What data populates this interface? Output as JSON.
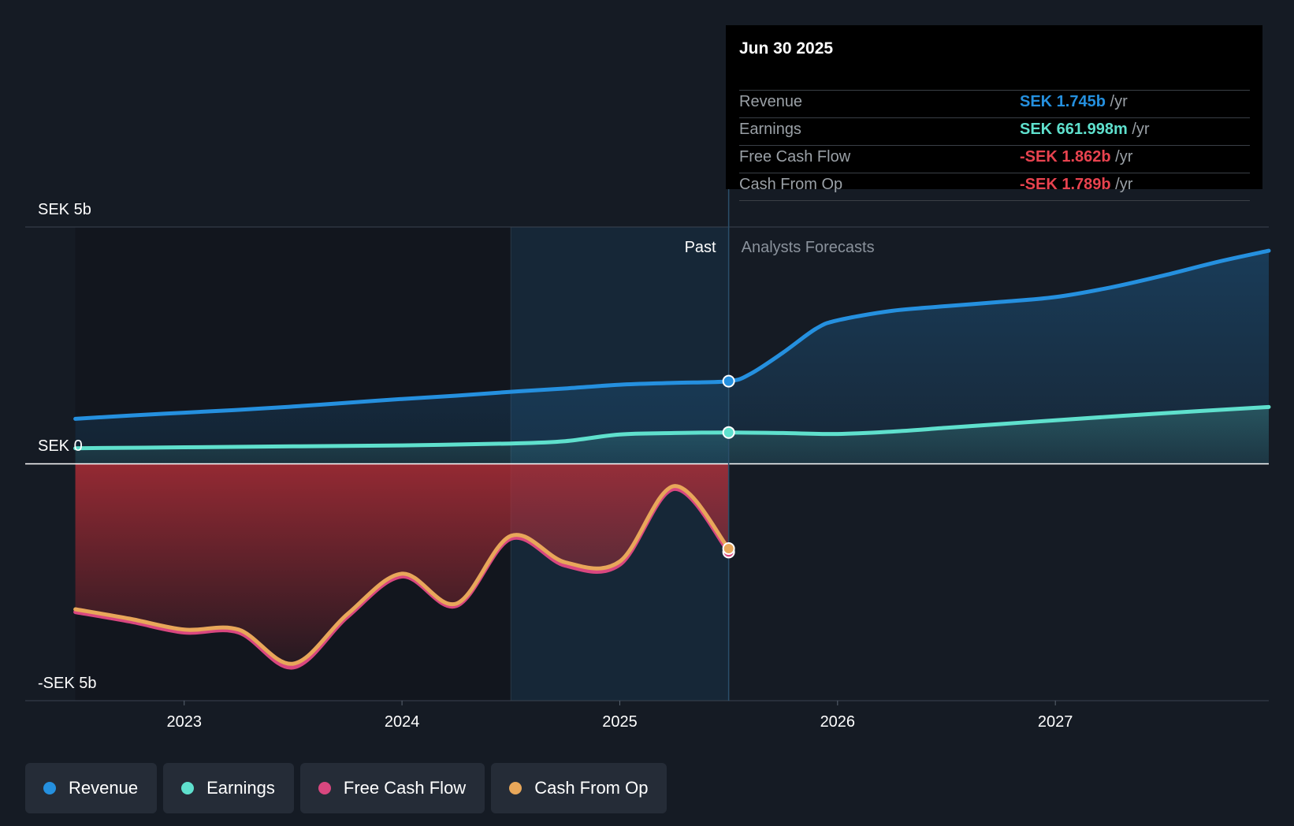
{
  "colors": {
    "revenue": "#2590df",
    "earnings": "#5fe0cd",
    "free_cash_flow": "#d9477f",
    "cash_from_op": "#e8a75a",
    "negative": "#e8434f",
    "background": "#151b24"
  },
  "chart_data": {
    "type": "line",
    "xlabel": "",
    "ylabel": "",
    "ylim": [
      -5,
      5
    ],
    "xlim": [
      2022.27,
      2027.98
    ],
    "x_ticks": [
      "2023",
      "2024",
      "2025",
      "2026",
      "2027"
    ],
    "y_ticks": [
      {
        "value": 5,
        "label": "SEK 5b"
      },
      {
        "value": 0,
        "label": "SEK 0"
      },
      {
        "value": -5,
        "label": "-SEK 5b"
      }
    ],
    "past_label": "Past",
    "forecast_label": "Analysts Forecasts",
    "divider_date": 2025.5,
    "highlight_start": 2024.5,
    "series": [
      {
        "name": "Revenue",
        "key": "revenue",
        "x": [
          2022.5,
          2022.75,
          2023.0,
          2023.25,
          2023.5,
          2023.75,
          2024.0,
          2024.25,
          2024.5,
          2024.75,
          2025.0,
          2025.25,
          2025.5,
          2025.6,
          2025.75,
          2025.9,
          2026.0,
          2026.25,
          2026.5,
          2026.75,
          2027.0,
          2027.25,
          2027.5,
          2027.75,
          2027.98
        ],
        "y": [
          0.95,
          1.02,
          1.08,
          1.14,
          1.21,
          1.29,
          1.37,
          1.44,
          1.52,
          1.59,
          1.67,
          1.71,
          1.745,
          1.9,
          2.35,
          2.85,
          3.03,
          3.23,
          3.33,
          3.42,
          3.52,
          3.72,
          3.98,
          4.27,
          4.5
        ]
      },
      {
        "name": "Earnings",
        "key": "earnings",
        "x": [
          2022.5,
          2023.0,
          2023.5,
          2024.0,
          2024.5,
          2024.75,
          2025.0,
          2025.25,
          2025.5,
          2025.75,
          2026.0,
          2026.25,
          2026.5,
          2026.75,
          2027.0,
          2027.5,
          2027.98
        ],
        "y": [
          0.33,
          0.35,
          0.37,
          0.39,
          0.43,
          0.48,
          0.62,
          0.65,
          0.662,
          0.65,
          0.63,
          0.68,
          0.76,
          0.84,
          0.92,
          1.07,
          1.2
        ]
      },
      {
        "name": "Free Cash Flow",
        "key": "free_cash_flow",
        "x": [
          2022.5,
          2022.75,
          2023.0,
          2023.25,
          2023.5,
          2023.75,
          2024.0,
          2024.25,
          2024.5,
          2024.75,
          2025.0,
          2025.25,
          2025.5
        ],
        "y": [
          -3.13,
          -3.33,
          -3.56,
          -3.56,
          -4.3,
          -3.23,
          -2.38,
          -3.0,
          -1.58,
          -2.15,
          -2.13,
          -0.53,
          -1.862
        ]
      },
      {
        "name": "Cash From Op",
        "key": "cash_from_op",
        "x": [
          2022.5,
          2022.75,
          2023.0,
          2023.25,
          2023.5,
          2023.75,
          2024.0,
          2024.25,
          2024.5,
          2024.75,
          2025.0,
          2025.25,
          2025.5
        ],
        "y": [
          -3.07,
          -3.27,
          -3.5,
          -3.5,
          -4.22,
          -3.17,
          -2.32,
          -2.95,
          -1.52,
          -2.08,
          -2.06,
          -0.47,
          -1.789
        ]
      }
    ]
  },
  "tooltip": {
    "date": "Jun 30 2025",
    "rows": [
      {
        "label": "Revenue",
        "value": "SEK 1.745b",
        "unit": "/yr",
        "color": "#2590df"
      },
      {
        "label": "Earnings",
        "value": "SEK 661.998m",
        "unit": "/yr",
        "color": "#5fe0cd"
      },
      {
        "label": "Free Cash Flow",
        "value": "-SEK 1.862b",
        "unit": "/yr",
        "color": "#e8434f"
      },
      {
        "label": "Cash From Op",
        "value": "-SEK 1.789b",
        "unit": "/yr",
        "color": "#e8434f"
      }
    ]
  },
  "legend": [
    {
      "label": "Revenue",
      "color": "#2590df"
    },
    {
      "label": "Earnings",
      "color": "#5fe0cd"
    },
    {
      "label": "Free Cash Flow",
      "color": "#d9477f"
    },
    {
      "label": "Cash From Op",
      "color": "#e8a75a"
    }
  ]
}
